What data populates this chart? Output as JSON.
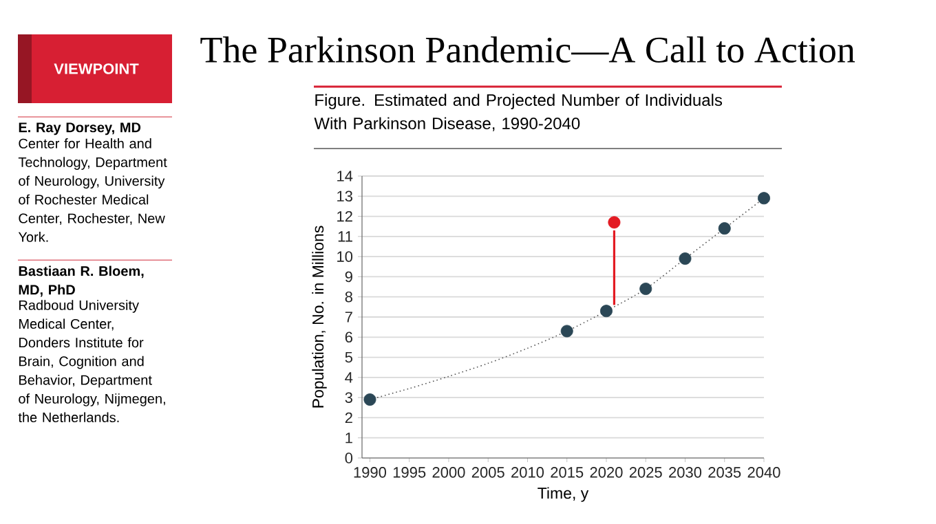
{
  "chart_data": {
    "type": "scatter",
    "title": "The Parkinson Pandemic—A Call to Action",
    "subtitle": "Figure. Estimated and Projected Number of Individuals With Parkinson Disease, 1990-2040",
    "xlabel": "Time, y",
    "ylabel": "Population, No. in Millions",
    "annotations": [
      "VIEWPOINT",
      "E. Ray Dorsey, MD",
      "Center for Health and Technology, Department of Neurology, University of Rochester Medical Center, Rochester, New York.",
      "Bastiaan R. Bloem, MD, PhD",
      "Radboud University Medical Center, Donders Institute for Brain, Cognition and Behavior, Department of Neurology, Nijmegen, the Netherlands."
    ],
    "series": [
      {
        "type": "line",
        "color": "#555555",
        "line_style": "dotted",
        "marker": "none",
        "x": [
          1990,
          1995,
          2000,
          2005,
          2010,
          2015,
          2020,
          2025,
          2030,
          2035,
          2040
        ],
        "values": [
          2.9,
          3.45,
          4.05,
          4.7,
          5.45,
          6.3,
          7.3,
          8.4,
          9.9,
          11.4,
          12.9
        ]
      },
      {
        "color": "#2b4756",
        "marker": "circle",
        "x": [
          1990,
          2015,
          2020,
          2025,
          2030,
          2035,
          2040
        ],
        "values": [
          2.9,
          6.3,
          7.3,
          8.4,
          9.9,
          11.4,
          12.9
        ]
      },
      {
        "type": "line",
        "color": "#e31b23",
        "line_style": "solid",
        "marker": "none",
        "x": [
          2021,
          2021
        ],
        "values": [
          7.6,
          11.3
        ]
      },
      {
        "color": "#e31b23",
        "marker": "circle",
        "x": [
          2021
        ],
        "values": [
          11.7
        ]
      }
    ],
    "xlim": [
      1989,
      2040
    ],
    "ylim": [
      0,
      14
    ],
    "xticks": [
      1990,
      1995,
      2000,
      2005,
      2010,
      2015,
      2020,
      2025,
      2030,
      2035,
      2040
    ],
    "yticks": [
      0,
      1,
      2,
      3,
      4,
      5,
      6,
      7,
      8,
      9,
      10,
      11,
      12,
      13,
      14
    ],
    "grid": "y"
  }
}
